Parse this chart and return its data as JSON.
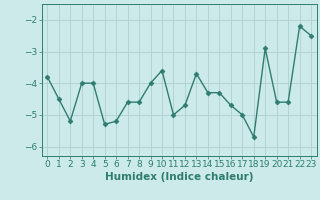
{
  "x": [
    0,
    1,
    2,
    3,
    4,
    5,
    6,
    7,
    8,
    9,
    10,
    11,
    12,
    13,
    14,
    15,
    16,
    17,
    18,
    19,
    20,
    21,
    22,
    23
  ],
  "y": [
    -3.8,
    -4.5,
    -5.2,
    -4.0,
    -4.0,
    -5.3,
    -5.2,
    -4.6,
    -4.6,
    -4.0,
    -3.6,
    -5.0,
    -4.7,
    -3.7,
    -4.3,
    -4.3,
    -4.7,
    -5.0,
    -5.7,
    -2.9,
    -4.6,
    -4.6,
    -2.2,
    -2.5
  ],
  "line_color": "#2e7d6e",
  "marker": "D",
  "markersize": 2.5,
  "linewidth": 1.0,
  "xlabel": "Humidex (Indice chaleur)",
  "xlim": [
    -0.5,
    23.5
  ],
  "ylim": [
    -6.3,
    -1.5
  ],
  "yticks": [
    -6,
    -5,
    -4,
    -3,
    -2
  ],
  "xticks": [
    0,
    1,
    2,
    3,
    4,
    5,
    6,
    7,
    8,
    9,
    10,
    11,
    12,
    13,
    14,
    15,
    16,
    17,
    18,
    19,
    20,
    21,
    22,
    23
  ],
  "background_color": "#cdeaea",
  "grid_color": "#b0d0d0",
  "tick_labelsize": 6.5,
  "xlabel_fontsize": 7.5
}
